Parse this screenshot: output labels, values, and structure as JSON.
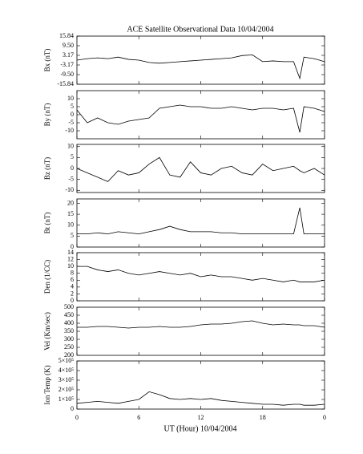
{
  "chart_data": [
    {
      "type": "line",
      "title": "ACE Satellite Observational Data   10/04/2004",
      "y_label": "Bx (nT)",
      "color": "#000000",
      "x": [
        0,
        1,
        2,
        3,
        4,
        5,
        6,
        7,
        8,
        9,
        10,
        11,
        12,
        13,
        14,
        15,
        16,
        17,
        18,
        19,
        20,
        21,
        21.6,
        22,
        23,
        24
      ],
      "values": [
        0,
        1,
        1.5,
        1,
        2,
        0.5,
        0,
        -1.5,
        -2,
        -1.5,
        -1,
        -0.5,
        0,
        0.5,
        1,
        1.5,
        3,
        3.5,
        -1,
        -0.5,
        -1,
        -1,
        -12,
        2,
        1,
        -1
      ],
      "xlim": [
        0,
        24
      ],
      "ylim": [
        -15.84,
        15.84
      ],
      "yticks": [
        -15.84,
        {
          "value": -9.5,
          "label": "-9.50"
        },
        -3.17,
        3.17,
        {
          "value": 9.5,
          "label": "9.50"
        },
        15.84
      ]
    },
    {
      "type": "line",
      "y_label": "By (nT)",
      "color": "#000000",
      "x": [
        0,
        1,
        2,
        3,
        4,
        5,
        6,
        7,
        8,
        9,
        10,
        11,
        12,
        13,
        14,
        15,
        16,
        17,
        18,
        19,
        20,
        21,
        21.6,
        22,
        23,
        24
      ],
      "values": [
        3,
        -5,
        -2,
        -5,
        -6,
        -4,
        -3,
        -2,
        4,
        5,
        6,
        5,
        5,
        4,
        4,
        5,
        4,
        3,
        4,
        4,
        3,
        4,
        -11,
        5,
        4,
        2
      ],
      "xlim": [
        0,
        24
      ],
      "ylim": [
        -15,
        15
      ],
      "yticks": [
        -10,
        -5,
        0,
        5,
        10
      ]
    },
    {
      "type": "line",
      "y_label": "Bz (nT)",
      "color": "#000000",
      "x": [
        0,
        1,
        2,
        3,
        4,
        5,
        6,
        7,
        8,
        9,
        10,
        11,
        12,
        13,
        14,
        15,
        16,
        17,
        18,
        19,
        20,
        21,
        21.6,
        22,
        23,
        24
      ],
      "values": [
        0,
        -2,
        -4,
        -6,
        -1,
        -3,
        -2,
        2,
        5,
        -3,
        -4,
        3,
        -2,
        -3,
        0,
        1,
        -2,
        -3,
        2,
        -1,
        0,
        1,
        -1,
        -2,
        0,
        -3
      ],
      "xlim": [
        0,
        24
      ],
      "ylim": [
        -11,
        11
      ],
      "yticks": [
        -10,
        -5,
        0,
        5,
        10
      ]
    },
    {
      "type": "line",
      "y_label": "Bt (nT)",
      "color": "#000000",
      "x": [
        0,
        1,
        2,
        3,
        4,
        5,
        6,
        7,
        8,
        9,
        10,
        11,
        12,
        13,
        14,
        15,
        16,
        17,
        18,
        19,
        20,
        21,
        21.6,
        22,
        23,
        24
      ],
      "values": [
        6,
        6,
        6.5,
        6,
        7,
        6.5,
        6,
        7,
        8,
        9.5,
        8,
        7,
        7,
        7,
        6.5,
        6.5,
        6,
        6,
        6,
        6,
        6,
        6,
        18,
        6,
        6,
        6
      ],
      "xlim": [
        0,
        24
      ],
      "ylim": [
        0,
        22
      ],
      "yticks": [
        0,
        5,
        10,
        15,
        20
      ]
    },
    {
      "type": "line",
      "y_label": "Den (1/CC)",
      "color": "#000000",
      "x": [
        0,
        1,
        2,
        3,
        4,
        5,
        6,
        7,
        8,
        9,
        10,
        11,
        12,
        13,
        14,
        15,
        16,
        17,
        18,
        19,
        20,
        21,
        21.6,
        22,
        23,
        24
      ],
      "values": [
        10,
        10,
        9,
        8.5,
        9,
        8,
        7.5,
        8,
        8.5,
        8,
        7.5,
        8,
        7,
        7.5,
        7,
        7,
        6.5,
        6,
        6.5,
        6,
        5.5,
        6,
        5.5,
        5.5,
        5.5,
        6
      ],
      "xlim": [
        0,
        24
      ],
      "ylim": [
        0,
        14
      ],
      "yticks": [
        0,
        2,
        4,
        6,
        8,
        10,
        12,
        14
      ]
    },
    {
      "type": "line",
      "y_label": "Vel (Km/sec)",
      "color": "#000000",
      "x": [
        0,
        1,
        2,
        3,
        4,
        5,
        6,
        7,
        8,
        9,
        10,
        11,
        12,
        13,
        14,
        15,
        16,
        17,
        18,
        19,
        20,
        21,
        21.6,
        22,
        23,
        24
      ],
      "values": [
        375,
        375,
        380,
        380,
        375,
        370,
        375,
        375,
        380,
        375,
        375,
        380,
        390,
        395,
        395,
        400,
        410,
        415,
        400,
        390,
        395,
        390,
        390,
        385,
        385,
        375
      ],
      "xlim": [
        0,
        24
      ],
      "ylim": [
        200,
        500
      ],
      "yticks": [
        200,
        250,
        300,
        350,
        400,
        450,
        500
      ]
    },
    {
      "type": "line",
      "y_label": "Ion Temp (K)",
      "x_label": "UT (Hour)   10/04/2004",
      "color": "#000000",
      "x": [
        0,
        1,
        2,
        3,
        4,
        5,
        6,
        7,
        8,
        9,
        10,
        11,
        12,
        13,
        14,
        15,
        16,
        17,
        18,
        19,
        20,
        21,
        21.6,
        22,
        23,
        24
      ],
      "values": [
        60000,
        70000,
        80000,
        70000,
        60000,
        80000,
        100000,
        180000,
        150000,
        110000,
        100000,
        110000,
        100000,
        110000,
        90000,
        80000,
        70000,
        60000,
        50000,
        50000,
        40000,
        50000,
        50000,
        40000,
        40000,
        50000
      ],
      "xlim": [
        0,
        24
      ],
      "ylim": [
        0,
        500000
      ],
      "yticks": [
        0,
        {
          "value": 100000,
          "label": "1×10⁵"
        },
        {
          "value": 200000,
          "label": "2×10⁵"
        },
        {
          "value": 300000,
          "label": "3×10⁵"
        },
        {
          "value": 400000,
          "label": "4×10⁵"
        },
        {
          "value": 500000,
          "label": "5×10⁵"
        }
      ],
      "xticks": [
        0,
        6,
        12,
        18,
        {
          "value": 24,
          "label": "0"
        }
      ]
    }
  ]
}
